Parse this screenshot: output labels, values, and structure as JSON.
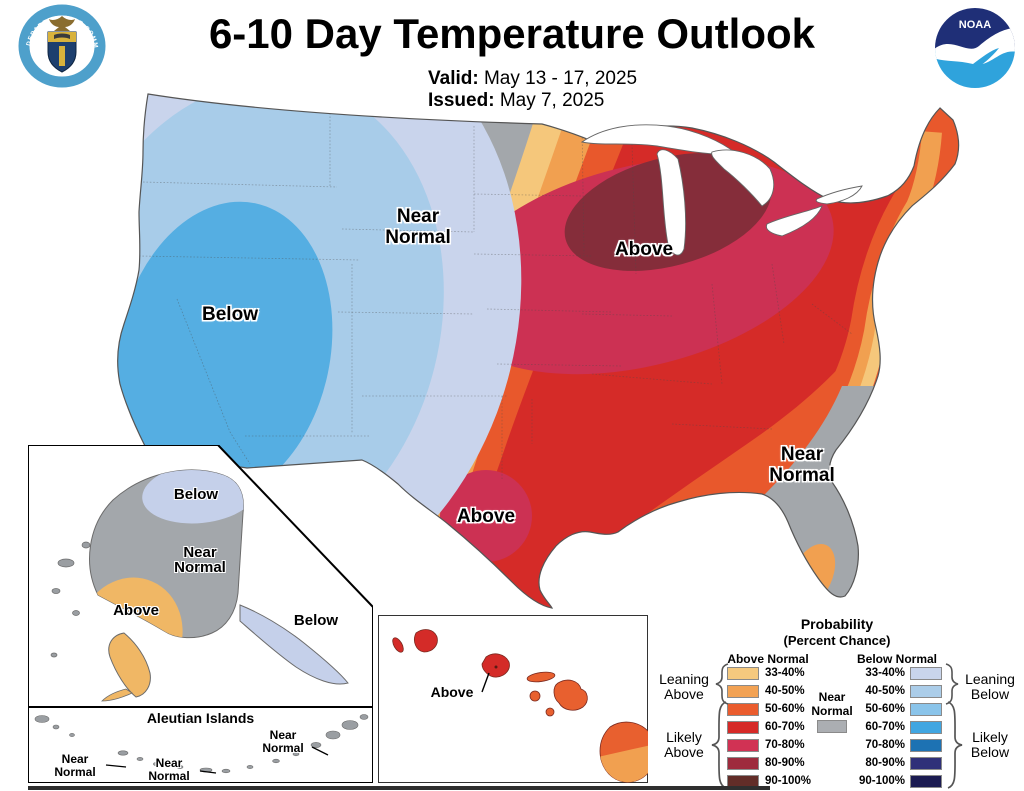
{
  "header": {
    "title": "6-10 Day Temperature Outlook",
    "valid_label": "Valid:",
    "valid_value": "May 13 - 17, 2025",
    "issued_label": "Issued:",
    "issued_value": "May 7, 2025"
  },
  "logos": {
    "noaa_text": "NOAA",
    "doc_seal_top_text": "DEPARTMENT OF COMMERCE",
    "doc_seal_bottom_text": "UNITED STATES OF AMERICA"
  },
  "map": {
    "labels": {
      "west_near_normal": "Near Normal",
      "west_below": "Below",
      "midwest_above": "Above",
      "texas_above": "Above",
      "southeast_near_normal": "Near Normal"
    }
  },
  "alaska": {
    "north_below": "Below",
    "near_normal": "Near Normal",
    "southwest_above": "Above",
    "panhandle_below": "Below"
  },
  "aleutian": {
    "title": "Aleutian Islands",
    "label_west": "Near Normal",
    "label_central": "Near Normal",
    "label_east": "Near Normal"
  },
  "hawaii": {
    "label": "Above"
  },
  "legend": {
    "title": "Probability",
    "subtitle": "(Percent Chance)",
    "above_header": "Above Normal",
    "below_header": "Below Normal",
    "near_normal_label": "Near Normal",
    "near_color": "#ABAEB2",
    "groups": {
      "leaning_above": "Leaning Above",
      "likely_above": "Likely Above",
      "leaning_below": "Leaning Below",
      "likely_below": "Likely Below"
    },
    "rows": [
      {
        "range": "33-40%",
        "above": "#F5C97E",
        "below": "#C9D5EC"
      },
      {
        "range": "40-50%",
        "above": "#F2A254",
        "below": "#ABCDE9"
      },
      {
        "range": "50-60%",
        "above": "#EA5C2E",
        "below": "#8AC4EA"
      },
      {
        "range": "60-70%",
        "above": "#D62A28",
        "below": "#41A6E1"
      },
      {
        "range": "70-80%",
        "above": "#D13254",
        "below": "#1D72B3"
      },
      {
        "range": "80-90%",
        "above": "#9E2B3D",
        "below": "#2F3079"
      },
      {
        "range": "90-100%",
        "above": "#622D28",
        "below": "#1B1B51"
      }
    ]
  },
  "colors": {
    "above_33_40": "#F5C77B",
    "above_40_50": "#F1A050",
    "above_50_60": "#E8582C",
    "above_60_70": "#D52B28",
    "above_70_80": "#CC3153",
    "above_80_90": "#852D3A",
    "below_33_40": "#C9D4EC",
    "below_40_50": "#A8CCE9",
    "below_core": "#55AEE2",
    "near_normal": "#A3A7AB",
    "ak_above": "#F0B765",
    "ak_below": "#C5D0EA",
    "hi_red": "#D42B28",
    "hi_orange": "#E8602F",
    "hi_light_orange": "#F1A050",
    "noaa_navy": "#1F2F77",
    "noaa_blue": "#2FA3DC",
    "seal_blue": "#4EA0CB"
  },
  "chart_data": {
    "type": "choropleth_outlook_map",
    "title": "6-10 Day Temperature Outlook",
    "valid": "May 13 - 17, 2025",
    "issued": "May 7, 2025",
    "categories": [
      "Below Normal",
      "Near Normal",
      "Above Normal"
    ],
    "probability_bins": [
      "33-40%",
      "40-50%",
      "50-60%",
      "60-70%",
      "70-80%",
      "80-90%",
      "90-100%"
    ],
    "regions": [
      {
        "area": "Pacific Northwest / Great Basin / California",
        "category": "Below",
        "peak_probability": "50-60%"
      },
      {
        "area": "Northern Rockies to western High Plains band",
        "category": "Near Normal"
      },
      {
        "area": "Central and eastern U.S. (Plains to East Coast)",
        "category": "Above",
        "peak_probability": "80-90% over Upper Midwest / Great Lakes"
      },
      {
        "area": "South Texas",
        "category": "Above",
        "peak_probability": "70-80%"
      },
      {
        "area": "Florida and southern Atlantic coast",
        "category": "Near Normal"
      },
      {
        "area": "Alaska interior",
        "category": "Near Normal"
      },
      {
        "area": "Northeast Alaska",
        "category": "Below",
        "peak_probability": "33-40%"
      },
      {
        "area": "Southwest Alaska",
        "category": "Above",
        "peak_probability": "33-40%"
      },
      {
        "area": "Alaska Panhandle",
        "category": "Below",
        "peak_probability": "33-40%"
      },
      {
        "area": "Aleutian Islands",
        "category": "Near Normal"
      },
      {
        "area": "Hawaii",
        "category": "Above",
        "peak_probability": "60-70% on Kauai and Oahu"
      }
    ]
  }
}
